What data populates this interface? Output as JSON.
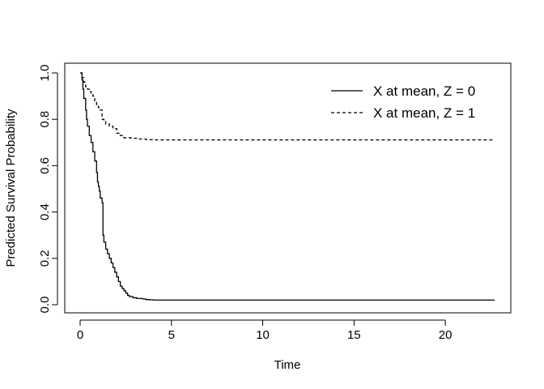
{
  "chart_data": {
    "type": "line",
    "step": true,
    "title": "",
    "xlabel": "Time",
    "ylabel": "Predicted Survival Probability",
    "xlim": [
      0,
      23
    ],
    "ylim": [
      0,
      1
    ],
    "xticks": [
      0,
      5,
      10,
      15,
      20
    ],
    "xtick_labels": [
      "0",
      "5",
      "10",
      "15",
      "20"
    ],
    "yticks": [
      0,
      0.2,
      0.4,
      0.6,
      0.8,
      1
    ],
    "ytick_labels": [
      "0.0",
      "0.2",
      "0.4",
      "0.6",
      "0.8",
      "1.0"
    ],
    "grid": false,
    "legend_position": "top-right",
    "series": [
      {
        "name": "X at mean, Z = 0",
        "line_style": "solid",
        "color": "#000000",
        "x": [
          0,
          0.1,
          0.15,
          0.2,
          0.3,
          0.35,
          0.4,
          0.5,
          0.6,
          0.7,
          0.8,
          0.9,
          0.95,
          1.0,
          1.05,
          1.1,
          1.2,
          1.25,
          1.3,
          1.4,
          1.5,
          1.6,
          1.7,
          1.8,
          1.9,
          2.0,
          2.1,
          2.2,
          2.3,
          2.4,
          2.5,
          2.6,
          2.7,
          2.9,
          3.1,
          3.4,
          3.6,
          3.8,
          4.0,
          22.7
        ],
        "y": [
          1.0,
          0.97,
          0.93,
          0.89,
          0.84,
          0.8,
          0.77,
          0.73,
          0.7,
          0.66,
          0.62,
          0.57,
          0.53,
          0.51,
          0.49,
          0.46,
          0.44,
          0.3,
          0.27,
          0.24,
          0.22,
          0.2,
          0.18,
          0.16,
          0.14,
          0.12,
          0.1,
          0.08,
          0.07,
          0.06,
          0.05,
          0.04,
          0.035,
          0.03,
          0.027,
          0.025,
          0.022,
          0.021,
          0.02,
          0.02
        ]
      },
      {
        "name": "X at mean, Z = 1",
        "line_style": "dashed",
        "color": "#000000",
        "x": [
          0,
          0.1,
          0.2,
          0.3,
          0.4,
          0.5,
          0.6,
          0.7,
          0.8,
          0.9,
          1.0,
          1.1,
          1.2,
          1.3,
          1.4,
          1.6,
          1.8,
          2.0,
          2.2,
          2.4,
          2.8,
          3.2,
          3.6,
          4.0,
          22.7
        ],
        "y": [
          1.0,
          0.98,
          0.96,
          0.94,
          0.93,
          0.92,
          0.91,
          0.9,
          0.88,
          0.86,
          0.85,
          0.84,
          0.8,
          0.79,
          0.78,
          0.77,
          0.76,
          0.74,
          0.73,
          0.72,
          0.718,
          0.715,
          0.712,
          0.711,
          0.711
        ]
      }
    ]
  }
}
